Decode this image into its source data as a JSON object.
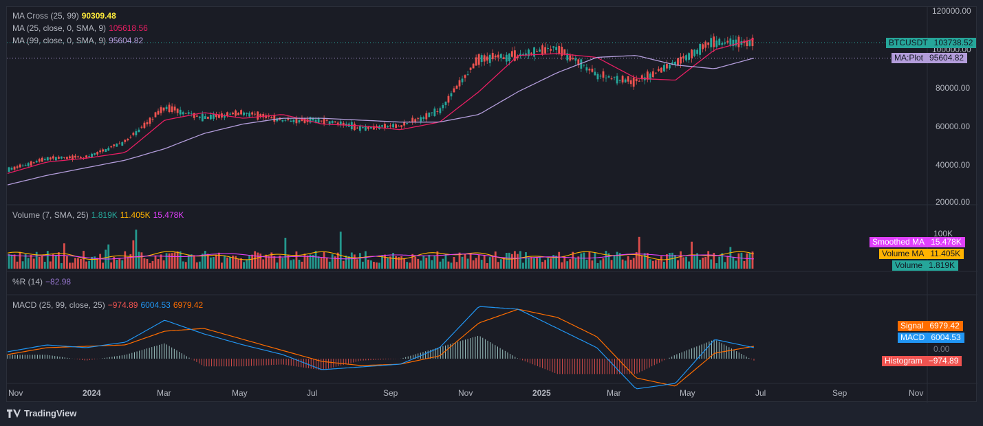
{
  "branding": {
    "logo_text": "TradingView"
  },
  "legends": {
    "price": [
      {
        "label": "MA Cross (25, 99)",
        "value": "90309.48",
        "value_color": "#ffeb3b"
      },
      {
        "label": "MA (25, close, 0, SMA, 9)",
        "value": "105618.56",
        "value_color": "#e91e63"
      },
      {
        "label": "MA (99, close, 0, SMA, 9)",
        "value": "95604.82",
        "value_color": "#b39ddb"
      }
    ],
    "volume": {
      "label": "Volume (7, SMA, 25)",
      "values": [
        "1.819K",
        "11.405K",
        "15.478K"
      ],
      "colors": [
        "#26a69a",
        "#ffb300",
        "#e040fb"
      ]
    },
    "wr": {
      "label": "%R (14)",
      "value": "−82.98",
      "value_color": "#9575cd"
    },
    "macd": {
      "label": "MACD (25, 99, close, 25)",
      "values": [
        "−974.89",
        "6004.53",
        "6979.42"
      ],
      "colors": [
        "#ef5350",
        "#2196f3",
        "#ff6d00"
      ]
    }
  },
  "price_axis": {
    "labels": [
      "120000.00",
      "100000.00",
      "80000.00",
      "60000.00",
      "40000.00",
      "20000.00"
    ],
    "ticks": [
      120000,
      100000,
      80000,
      60000,
      40000,
      20000
    ]
  },
  "volume_axis": {
    "labels": [
      "100K"
    ]
  },
  "macd_axis": {
    "labels": [
      "0.00"
    ]
  },
  "time_axis": {
    "labels": [
      "Nov",
      "2024",
      "Mar",
      "May",
      "Jul",
      "Sep",
      "Nov",
      "2025",
      "Mar",
      "May",
      "Jul",
      "Sep",
      "Nov"
    ],
    "bold": [
      false,
      true,
      false,
      false,
      false,
      false,
      false,
      true,
      false,
      false,
      false,
      false,
      false
    ]
  },
  "price_tags": [
    {
      "name": "BTCUSDT",
      "value": "103738.52",
      "color": "#26a69a"
    },
    {
      "name": "MA:Plot",
      "value": "95604.82",
      "color": "#b39ddb",
      "text_color": "#131722"
    }
  ],
  "volume_tags": [
    {
      "name": "Smoothed MA",
      "value": "15.478K",
      "color": "#e040fb"
    },
    {
      "name": "Volume MA",
      "value": "11.405K",
      "color": "#ffb300",
      "text_color": "#131722"
    },
    {
      "name": "Volume",
      "value": "1.819K",
      "color": "#26a69a",
      "text_color": "#131722"
    }
  ],
  "macd_tags": [
    {
      "name": "Signal",
      "value": "6979.42",
      "color": "#ff6d00"
    },
    {
      "name": "MACD",
      "value": "6004.53",
      "color": "#2196f3"
    },
    {
      "name": "Histogram",
      "value": "−974.89",
      "color": "#ef5350"
    }
  ],
  "chart_data": {
    "type": "line",
    "symbol": "BTCUSDT",
    "ylim": [
      20000,
      120000
    ],
    "x": [
      "2023-11",
      "2023-12",
      "2024-01",
      "2024-02",
      "2024-03",
      "2024-04",
      "2024-05",
      "2024-06",
      "2024-07",
      "2024-08",
      "2024-09",
      "2024-10",
      "2024-11",
      "2024-12",
      "2025-01",
      "2025-02",
      "2025-03",
      "2025-04",
      "2025-05",
      "2025-06"
    ],
    "series": [
      {
        "name": "BTCUSDT",
        "values": [
          37000,
          43000,
          43500,
          52000,
          70000,
          64000,
          67000,
          63000,
          63000,
          59000,
          60000,
          68000,
          95000,
          97000,
          101000,
          87000,
          83000,
          93000,
          104000,
          103738.52
        ],
        "color": "#26a69a"
      },
      {
        "name": "MA (25, close, 0, SMA, 9)",
        "values": [
          35000,
          41000,
          43000,
          46000,
          63000,
          67000,
          64000,
          66000,
          61000,
          60000,
          58000,
          62000,
          78000,
          97000,
          98000,
          96000,
          85000,
          84000,
          100000,
          105618.56
        ],
        "color": "#e91e63"
      },
      {
        "name": "MA (99, close, 0, SMA, 9)",
        "values": [
          29000,
          34000,
          38000,
          42000,
          48000,
          56000,
          61000,
          64000,
          64000,
          63000,
          62000,
          62000,
          66000,
          78000,
          88000,
          96000,
          97000,
          92000,
          90000,
          95604.82
        ],
        "color": "#b39ddb"
      }
    ],
    "macd": {
      "macd_last": 6004.53,
      "signal_last": 6979.42,
      "histogram_last": -974.89
    },
    "volume": {
      "last": "1.819K",
      "volume_ma": "11.405K",
      "smoothed_ma": "15.478K"
    },
    "williams_r_last": -82.98
  }
}
